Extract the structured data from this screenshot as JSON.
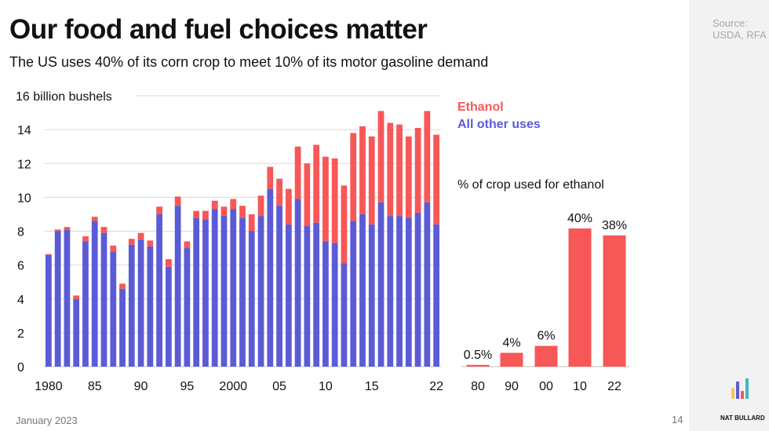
{
  "title": "Our food and fuel choices matter",
  "subtitle": "The US uses 40% of its corn crop to meet 10% of its motor gasoline demand",
  "source": [
    "Source:",
    "USDA, RFA"
  ],
  "footer": {
    "date": "January 2023",
    "page": "14",
    "brand": "NAT BULLARD"
  },
  "colors": {
    "ethanol": "#f75757",
    "other": "#5b5bd6",
    "grid": "#d9d9d9",
    "axis": "#bdbdbd"
  },
  "chart_data": [
    {
      "type": "bar",
      "stacked": true,
      "ylabel": "16 billion bushels",
      "ylim": [
        0,
        16
      ],
      "yticks": [
        "0",
        "2",
        "4",
        "6",
        "8",
        "10",
        "12",
        "14"
      ],
      "x": [
        1980,
        1981,
        1982,
        1983,
        1984,
        1985,
        1986,
        1987,
        1988,
        1989,
        1990,
        1991,
        1992,
        1993,
        1994,
        1995,
        1996,
        1997,
        1998,
        1999,
        2000,
        2001,
        2002,
        2003,
        2004,
        2005,
        2006,
        2007,
        2008,
        2009,
        2010,
        2011,
        2012,
        2013,
        2014,
        2015,
        2016,
        2017,
        2018,
        2019,
        2020,
        2021,
        2022
      ],
      "xticks": [
        {
          "value": 1980,
          "label": "1980"
        },
        {
          "value": 1985,
          "label": "85"
        },
        {
          "value": 1990,
          "label": "90"
        },
        {
          "value": 1995,
          "label": "95"
        },
        {
          "value": 2000,
          "label": "2000"
        },
        {
          "value": 2005,
          "label": "05"
        },
        {
          "value": 2010,
          "label": "10"
        },
        {
          "value": 2015,
          "label": "15"
        },
        {
          "value": 2022,
          "label": "22"
        }
      ],
      "legend_placement": "top-right",
      "series": [
        {
          "name": "All other uses",
          "values": [
            6.6,
            8.0,
            8.1,
            4.0,
            7.4,
            8.6,
            7.9,
            6.8,
            4.6,
            7.2,
            7.5,
            7.1,
            9.0,
            5.9,
            9.5,
            7.0,
            8.8,
            8.7,
            9.3,
            8.9,
            9.3,
            8.8,
            8.0,
            8.9,
            10.5,
            9.5,
            8.4,
            9.9,
            8.3,
            8.5,
            7.4,
            7.3,
            6.1,
            8.6,
            9.0,
            8.4,
            9.7,
            8.9,
            8.9,
            8.8,
            9.1,
            9.7,
            8.4
          ]
        },
        {
          "name": "Ethanol",
          "values": [
            0.05,
            0.1,
            0.15,
            0.2,
            0.3,
            0.25,
            0.35,
            0.35,
            0.3,
            0.35,
            0.4,
            0.35,
            0.45,
            0.45,
            0.55,
            0.4,
            0.4,
            0.5,
            0.5,
            0.55,
            0.6,
            0.7,
            1.0,
            1.2,
            1.3,
            1.6,
            2.1,
            3.1,
            3.7,
            4.6,
            5.0,
            5.0,
            4.6,
            5.2,
            5.2,
            5.2,
            5.4,
            5.5,
            5.4,
            4.8,
            5.0,
            5.4,
            5.3
          ]
        }
      ]
    },
    {
      "type": "bar",
      "title": "% of crop used for ethanol",
      "categories": [
        "80",
        "90",
        "00",
        "10",
        "22"
      ],
      "values": [
        0.5,
        4,
        6,
        40,
        38
      ],
      "data_labels": [
        "0.5%",
        "4%",
        "6%",
        "40%",
        "38%"
      ],
      "ylim": [
        0,
        40
      ]
    }
  ]
}
